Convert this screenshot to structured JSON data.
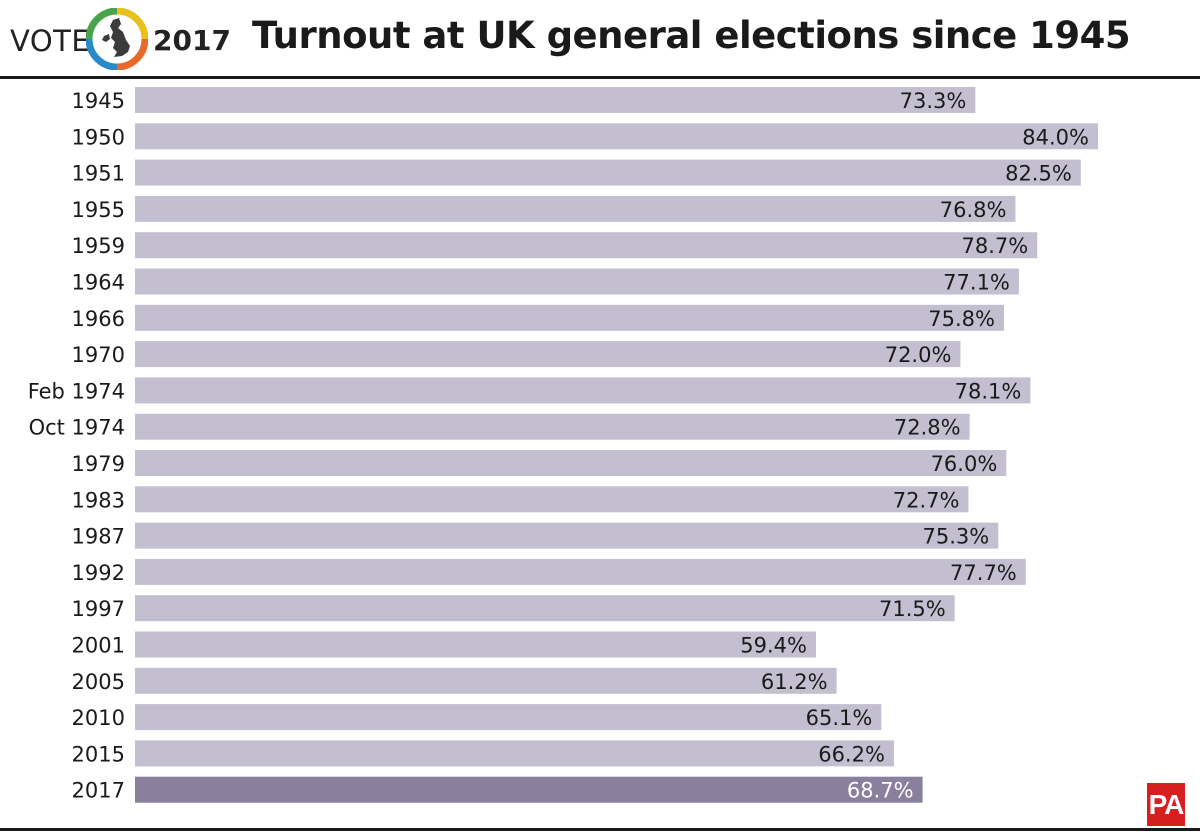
{
  "header": {
    "vote_word": "VOTE",
    "vote_year": "2017",
    "logo_icon": "uk-map-ring-icon"
  },
  "colors": {
    "bar": "#c3bfd1",
    "bar_highlight": "#8a809e",
    "label": "#1a1a1a",
    "label_highlight": "#ffffff",
    "pa_red": "#d6201f"
  },
  "footer": {
    "pa_logo_text": "PA"
  },
  "chart_data": {
    "type": "bar",
    "orientation": "horizontal",
    "title": "Turnout at UK general elections since 1945",
    "xlabel": "",
    "ylabel": "",
    "unit": "%",
    "xlim": [
      0,
      85
    ],
    "grid": false,
    "categories": [
      "1945",
      "1950",
      "1951",
      "1955",
      "1959",
      "1964",
      "1966",
      "1970",
      "Feb 1974",
      "Oct 1974",
      "1979",
      "1983",
      "1987",
      "1992",
      "1997",
      "2001",
      "2005",
      "2010",
      "2015",
      "2017"
    ],
    "values": [
      73.3,
      84.0,
      82.5,
      76.8,
      78.7,
      77.1,
      75.8,
      72.0,
      78.1,
      72.8,
      76.0,
      72.7,
      75.3,
      77.7,
      71.5,
      59.4,
      61.2,
      65.1,
      66.2,
      68.7
    ],
    "value_labels": [
      "73.3%",
      "84.0%",
      "82.5%",
      "76.8%",
      "78.7%",
      "77.1%",
      "75.8%",
      "72.0%",
      "78.1%",
      "72.8%",
      "76.0%",
      "72.7%",
      "75.3%",
      "77.7%",
      "71.5%",
      "59.4%",
      "61.2%",
      "65.1%",
      "66.2%",
      "68.7%"
    ],
    "highlight": "2017"
  }
}
